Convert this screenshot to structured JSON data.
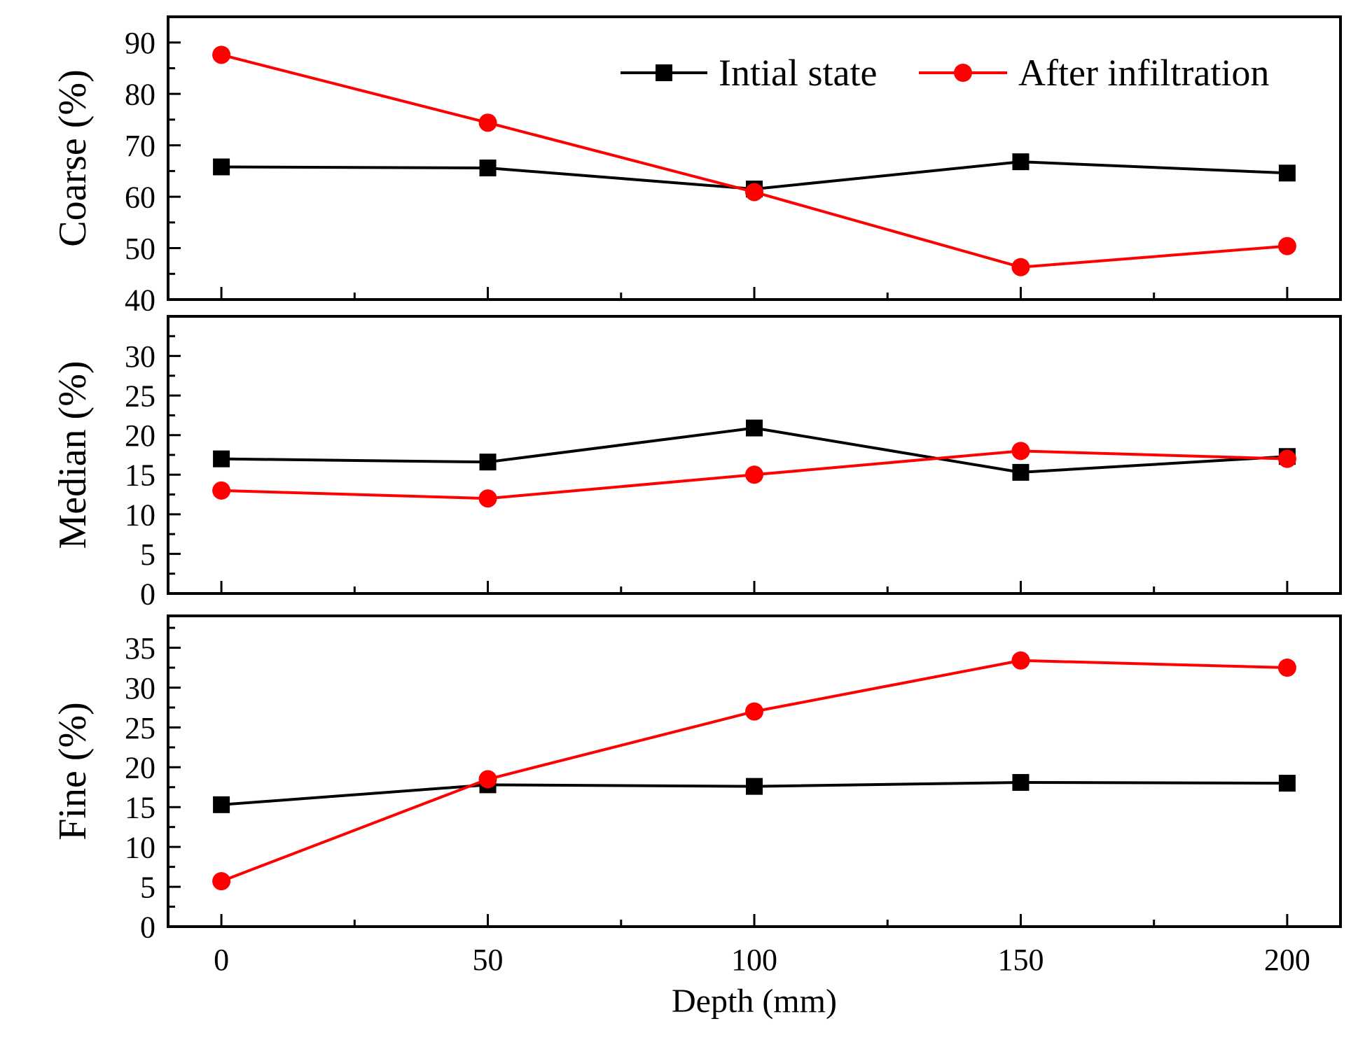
{
  "chart_data": {
    "type": "line",
    "xlabel": "Depth (mm)",
    "x": [
      0,
      50,
      100,
      150,
      200
    ],
    "xlim": [
      -10,
      210
    ],
    "xticks": [
      0,
      50,
      100,
      150,
      200
    ],
    "legend": {
      "placement": "top-right of top panel",
      "entries": [
        {
          "name": "Intial state",
          "color": "#000000",
          "marker": "square"
        },
        {
          "name": "After infiltration",
          "color": "#ff0000",
          "marker": "circle"
        }
      ]
    },
    "panels": [
      {
        "id": "coarse",
        "ylabel": "Coarse (%)",
        "ylim": [
          40,
          95
        ],
        "yticks": [
          40,
          50,
          60,
          70,
          80,
          90
        ],
        "series": [
          {
            "name": "Intial state",
            "color": "#000000",
            "marker": "square",
            "values": [
              65.8,
              65.6,
              61.5,
              66.8,
              64.6
            ]
          },
          {
            "name": "After infiltration",
            "color": "#ff0000",
            "marker": "circle",
            "values": [
              87.6,
              74.4,
              60.9,
              46.3,
              50.4
            ]
          }
        ]
      },
      {
        "id": "median",
        "ylabel": "Median (%)",
        "ylim": [
          0,
          35
        ],
        "yticks": [
          0,
          5,
          10,
          15,
          20,
          25,
          30
        ],
        "series": [
          {
            "name": "Intial state",
            "color": "#000000",
            "marker": "square",
            "values": [
              17.0,
              16.6,
              20.9,
              15.3,
              17.3
            ]
          },
          {
            "name": "After infiltration",
            "color": "#ff0000",
            "marker": "circle",
            "values": [
              13.0,
              12.0,
              15.0,
              18.0,
              17.0
            ]
          }
        ]
      },
      {
        "id": "fine",
        "ylabel": "Fine (%)",
        "ylim": [
          0,
          39
        ],
        "yticks": [
          0,
          5,
          10,
          15,
          20,
          25,
          30,
          35
        ],
        "series": [
          {
            "name": "Intial state",
            "color": "#000000",
            "marker": "square",
            "values": [
              15.3,
              17.8,
              17.6,
              18.1,
              18.0
            ]
          },
          {
            "name": "After infiltration",
            "color": "#ff0000",
            "marker": "circle",
            "values": [
              5.7,
              18.5,
              27.0,
              33.4,
              32.5
            ]
          }
        ]
      }
    ]
  }
}
